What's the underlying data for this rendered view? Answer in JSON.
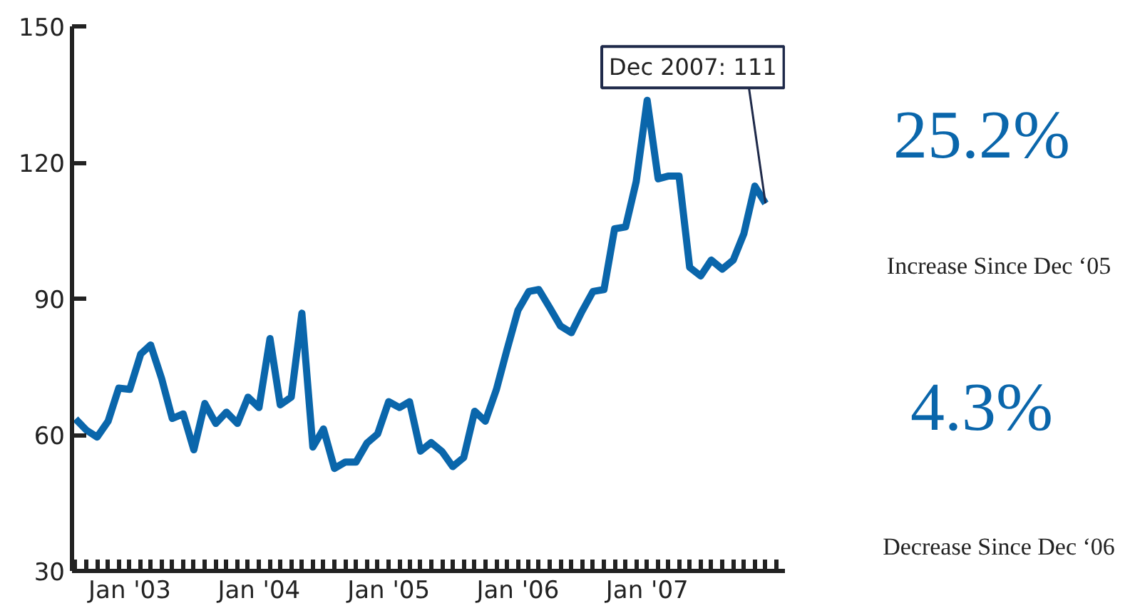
{
  "chart_data": {
    "type": "line",
    "x": [
      "2002-08",
      "2002-09",
      "2002-10",
      "2002-11",
      "2002-12",
      "2003-01",
      "2003-02",
      "2003-03",
      "2003-04",
      "2003-05",
      "2003-06",
      "2003-07",
      "2003-08",
      "2003-09",
      "2003-10",
      "2003-11",
      "2003-12",
      "2004-01",
      "2004-02",
      "2004-03",
      "2004-04",
      "2004-05",
      "2004-06",
      "2004-07",
      "2004-08",
      "2004-09",
      "2004-10",
      "2004-11",
      "2004-12",
      "2005-01",
      "2005-02",
      "2005-03",
      "2005-04",
      "2005-05",
      "2005-06",
      "2005-07",
      "2005-08",
      "2005-09",
      "2005-10",
      "2005-11",
      "2005-12",
      "2006-01",
      "2006-02",
      "2006-03",
      "2006-04",
      "2006-05",
      "2006-06",
      "2006-07",
      "2006-08",
      "2006-09",
      "2006-10",
      "2006-11",
      "2006-12",
      "2007-01",
      "2007-02",
      "2007-03",
      "2007-04",
      "2007-05",
      "2007-06",
      "2007-07",
      "2007-08",
      "2007-09",
      "2007-10",
      "2007-11",
      "2007-12"
    ],
    "series": [
      {
        "color": "#0a66ab",
        "values": [
          63.5,
          61,
          59.5,
          63,
          70.3,
          70,
          77.8,
          79.8,
          72.4,
          63.6,
          64.6,
          56.7,
          66.9,
          62.5,
          65,
          62.5,
          68.3,
          66,
          81.2,
          66.6,
          68.3,
          86.8,
          57.3,
          61.3,
          52.6,
          54,
          54,
          58.2,
          60.2,
          67.3,
          66,
          67.3,
          56.4,
          58.3,
          56.3,
          53,
          55,
          65.2,
          63,
          69.9,
          78.7,
          87.4,
          91.6,
          92,
          88,
          84,
          82.5,
          87.2,
          91.6,
          92,
          105.4,
          105.8,
          115.8,
          133.7,
          116.4,
          117,
          117,
          96.9,
          95,
          98.5,
          96.5,
          98.5,
          104.3,
          114.8,
          111
        ]
      }
    ],
    "xlim": [
      "2002-07-22",
      "2008-01-25"
    ],
    "xticks": [
      {
        "value": "2003-01",
        "label": "Jan '03"
      },
      {
        "value": "2004-01",
        "label": "Jan '04"
      },
      {
        "value": "2005-01",
        "label": "Jan '05"
      },
      {
        "value": "2006-01",
        "label": "Jan '06"
      },
      {
        "value": "2007-01",
        "label": "Jan '07"
      }
    ],
    "ylim": [
      30,
      150
    ],
    "yticks": [
      30,
      60,
      90,
      120,
      150
    ],
    "grid": false,
    "marker": "none",
    "line_style": "solid",
    "annotations": [
      {
        "text": "Dec 2007: 111",
        "x": "2007-12",
        "y": 111
      },
      "25.2%",
      "Increase Since Dec ‘05",
      "4.3%",
      "Decrease Since Dec ‘06"
    ]
  }
}
